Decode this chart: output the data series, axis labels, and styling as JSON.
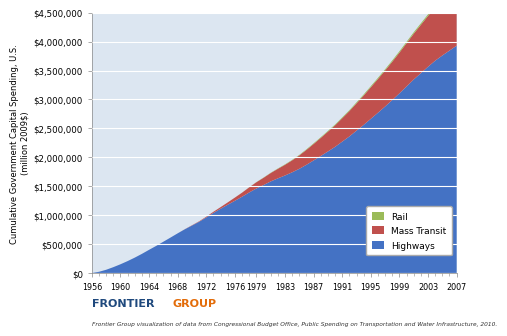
{
  "years": [
    1956,
    1957,
    1958,
    1959,
    1960,
    1961,
    1962,
    1963,
    1964,
    1965,
    1966,
    1967,
    1968,
    1969,
    1970,
    1971,
    1972,
    1973,
    1974,
    1975,
    1976,
    1977,
    1978,
    1979,
    1980,
    1981,
    1982,
    1983,
    1984,
    1985,
    1986,
    1987,
    1988,
    1989,
    1990,
    1991,
    1992,
    1993,
    1994,
    1995,
    1996,
    1997,
    1998,
    1999,
    2000,
    2001,
    2002,
    2003,
    2004,
    2005,
    2006,
    2007
  ],
  "highways": [
    0,
    20000,
    55000,
    100000,
    150000,
    205000,
    265000,
    330000,
    400000,
    468000,
    540000,
    612000,
    685000,
    755000,
    820000,
    885000,
    960000,
    1038000,
    1110000,
    1180000,
    1248000,
    1318000,
    1392000,
    1460000,
    1520000,
    1582000,
    1635000,
    1685000,
    1740000,
    1800000,
    1870000,
    1945000,
    2022000,
    2100000,
    2180000,
    2270000,
    2360000,
    2460000,
    2560000,
    2665000,
    2770000,
    2878000,
    2990000,
    3105000,
    3225000,
    3345000,
    3455000,
    3565000,
    3670000,
    3760000,
    3845000,
    3930000
  ],
  "mass_transit": [
    0,
    0,
    0,
    0,
    0,
    0,
    0,
    0,
    0,
    0,
    0,
    0,
    0,
    2000,
    5000,
    8000,
    13000,
    20000,
    28000,
    40000,
    55000,
    70000,
    88000,
    108000,
    125000,
    145000,
    165000,
    185000,
    207000,
    232000,
    258000,
    285000,
    313000,
    343000,
    372000,
    405000,
    438000,
    473000,
    508000,
    546000,
    584000,
    623000,
    663000,
    705000,
    748000,
    792000,
    836000,
    880000,
    924000,
    968000,
    1012000,
    1058000
  ],
  "rail": [
    0,
    0,
    0,
    0,
    0,
    0,
    0,
    0,
    0,
    0,
    0,
    0,
    0,
    0,
    0,
    0,
    0,
    0,
    0,
    0,
    500,
    1000,
    2000,
    3000,
    4000,
    5000,
    6000,
    7000,
    8000,
    9000,
    10000,
    11000,
    12000,
    13000,
    14000,
    15000,
    16000,
    17000,
    18000,
    19000,
    20000,
    21000,
    22000,
    23000,
    24000,
    25000,
    26000,
    27000,
    28000,
    29000,
    30000,
    31000
  ],
  "highway_color": "#4472C4",
  "mass_transit_color": "#C0504D",
  "rail_color": "#9BBB59",
  "plot_bg_color": "#DCE6F1",
  "ylabel_line1": "Cumulative Government Capital Spending, U.S.",
  "ylabel_line2": "(million 2009$)",
  "ylim": [
    0,
    4500000
  ],
  "yticks": [
    0,
    500000,
    1000000,
    1500000,
    2000000,
    2500000,
    3000000,
    3500000,
    4000000,
    4500000
  ],
  "ytick_labels": [
    "$0",
    "$500,000",
    "$1,000,000",
    "$1,500,000",
    "$2,000,000",
    "$2,500,000",
    "$3,000,000",
    "$3,500,000",
    "$4,000,000",
    "$4,500,000"
  ],
  "xticks": [
    1956,
    1960,
    1964,
    1968,
    1972,
    1976,
    1979,
    1983,
    1987,
    1991,
    1995,
    1999,
    2003,
    2007
  ],
  "xlim": [
    1956,
    2007
  ],
  "frontier_blue": "#1F497D",
  "frontier_orange": "#E36C09",
  "footnote": "Frontier Group visualization of data from Congressional Budget Office, Public Spending on Transportation and Water Infrastructure, 2010."
}
